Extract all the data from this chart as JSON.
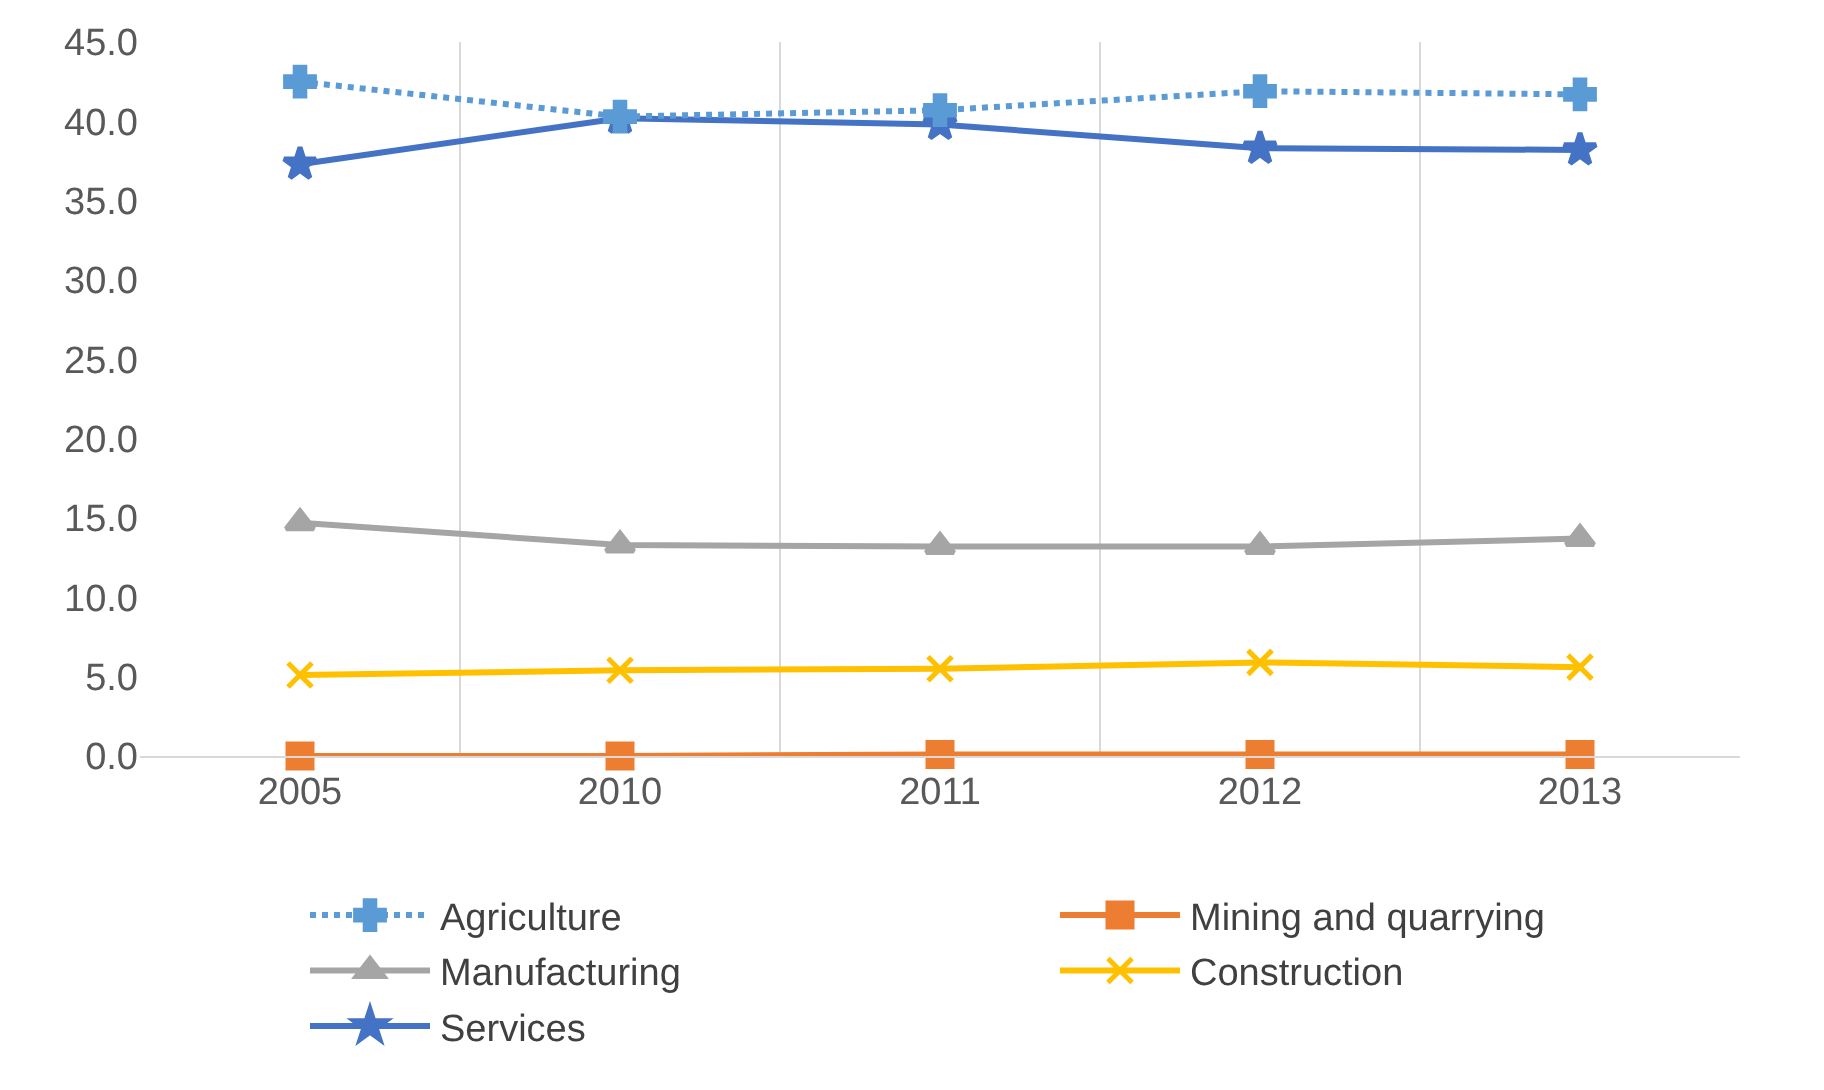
{
  "chart_data": {
    "type": "line",
    "categories": [
      "2005",
      "2010",
      "2011",
      "2012",
      "2013"
    ],
    "series": [
      {
        "name": "Agriculture",
        "color": "#5b9bd5",
        "marker": "cross",
        "line_style": "dotted",
        "values": [
          42.5,
          40.3,
          40.7,
          41.9,
          41.7
        ]
      },
      {
        "name": "Mining and quarrying",
        "color": "#ed7d31",
        "marker": "square",
        "line_style": "solid",
        "values": [
          0.0,
          0.0,
          0.1,
          0.1,
          0.1
        ]
      },
      {
        "name": "Manufacturing",
        "color": "#a5a5a5",
        "marker": "triangle",
        "line_style": "solid",
        "values": [
          14.7,
          13.3,
          13.2,
          13.2,
          13.7
        ]
      },
      {
        "name": "Construction",
        "color": "#ffc000",
        "marker": "x",
        "line_style": "solid",
        "values": [
          5.1,
          5.4,
          5.5,
          5.9,
          5.6
        ]
      },
      {
        "name": "Services",
        "color": "#4472c4",
        "marker": "star",
        "line_style": "solid",
        "values": [
          37.3,
          40.2,
          39.8,
          38.3,
          38.2
        ]
      }
    ],
    "ylim": [
      0,
      45
    ],
    "yticks": [
      {
        "value": 0,
        "label": "0.0"
      },
      {
        "value": 5,
        "label": "5.0"
      },
      {
        "value": 10,
        "label": "10.0"
      },
      {
        "value": 15,
        "label": "15.0"
      },
      {
        "value": 20,
        "label": "20.0"
      },
      {
        "value": 25,
        "label": "25.0"
      },
      {
        "value": 30,
        "label": "30.0"
      },
      {
        "value": 35,
        "label": "35.0"
      },
      {
        "value": 40,
        "label": "40.0"
      },
      {
        "value": 45,
        "label": "45.0"
      }
    ],
    "grid": "x",
    "legend": "bottom"
  }
}
